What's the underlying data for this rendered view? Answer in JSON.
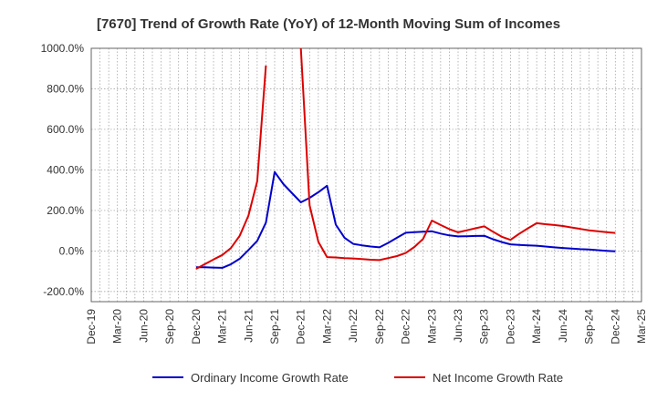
{
  "chart_data": {
    "type": "line",
    "title": "[7670]  Trend of Growth Rate (YoY) of 12-Month Moving Sum of Incomes",
    "xlabel": "",
    "ylabel": "",
    "ylim": [
      -250,
      1000
    ],
    "yticks": [
      1000,
      800,
      600,
      400,
      200,
      0,
      -200
    ],
    "ytick_labels": [
      "1000.0%",
      "800.0%",
      "600.0%",
      "400.0%",
      "200.0%",
      "0.0%",
      "-200.0%"
    ],
    "x_tick_labels": [
      "Dec-19",
      "Mar-20",
      "Jun-20",
      "Sep-20",
      "Dec-20",
      "Mar-21",
      "Jun-21",
      "Sep-21",
      "Dec-21",
      "Mar-22",
      "Jun-22",
      "Sep-22",
      "Dec-22",
      "Mar-23",
      "Jun-23",
      "Sep-23",
      "Dec-23",
      "Mar-24",
      "Jun-24",
      "Sep-24",
      "Dec-24",
      "Mar-25"
    ],
    "x_range_months": [
      "Dec-19",
      "Mar-25"
    ],
    "grid": true,
    "legend_position": "bottom",
    "series": [
      {
        "name": "Ordinary Income Growth Rate",
        "color": "#0000cc",
        "points": [
          [
            "Dec-20",
            -80
          ],
          [
            "Jan-21",
            -80
          ],
          [
            "Feb-21",
            -82
          ],
          [
            "Mar-21",
            -83
          ],
          [
            "Apr-21",
            -65
          ],
          [
            "May-21",
            -38
          ],
          [
            "Jun-21",
            5
          ],
          [
            "Jul-21",
            50
          ],
          [
            "Aug-21",
            140
          ],
          [
            "Sep-21",
            390
          ],
          [
            "Oct-21",
            330
          ],
          [
            "Nov-21",
            285
          ],
          [
            "Dec-21",
            240
          ],
          [
            "Jan-22",
            262
          ],
          [
            "Feb-22",
            290
          ],
          [
            "Mar-22",
            322
          ],
          [
            "Apr-22",
            130
          ],
          [
            "May-22",
            65
          ],
          [
            "Jun-22",
            35
          ],
          [
            "Jul-22",
            28
          ],
          [
            "Aug-22",
            22
          ],
          [
            "Sep-22",
            18
          ],
          [
            "Oct-22",
            40
          ],
          [
            "Nov-22",
            65
          ],
          [
            "Dec-22",
            90
          ],
          [
            "Jan-23",
            93
          ],
          [
            "Feb-23",
            95
          ],
          [
            "Mar-23",
            97
          ],
          [
            "Apr-23",
            86
          ],
          [
            "May-23",
            77
          ],
          [
            "Jun-23",
            72
          ],
          [
            "Jul-23",
            73
          ],
          [
            "Aug-23",
            74
          ],
          [
            "Sep-23",
            75
          ],
          [
            "Oct-23",
            58
          ],
          [
            "Nov-23",
            44
          ],
          [
            "Dec-23",
            33
          ],
          [
            "Jan-24",
            30
          ],
          [
            "Feb-24",
            28
          ],
          [
            "Mar-24",
            26
          ],
          [
            "Apr-24",
            22
          ],
          [
            "May-24",
            18
          ],
          [
            "Jun-24",
            15
          ],
          [
            "Jul-24",
            12
          ],
          [
            "Aug-24",
            9
          ],
          [
            "Sep-24",
            7
          ],
          [
            "Oct-24",
            4
          ],
          [
            "Nov-24",
            1
          ],
          [
            "Dec-24",
            -2
          ]
        ]
      },
      {
        "name": "Net Income Growth Rate",
        "color": "#dd0000",
        "points": [
          [
            "Dec-20",
            -88
          ],
          [
            "Jan-21",
            -65
          ],
          [
            "Feb-21",
            -42
          ],
          [
            "Mar-21",
            -20
          ],
          [
            "Apr-21",
            15
          ],
          [
            "May-21",
            75
          ],
          [
            "Jun-21",
            175
          ],
          [
            "Jul-21",
            345
          ],
          [
            "Aug-21",
            915
          ],
          null,
          [
            "Dec-21",
            1000
          ],
          [
            "Jan-22",
            225
          ],
          [
            "Feb-22",
            45
          ],
          [
            "Mar-22",
            -30
          ],
          [
            "Apr-22",
            -32
          ],
          [
            "May-22",
            -35
          ],
          [
            "Jun-22",
            -37
          ],
          [
            "Jul-22",
            -40
          ],
          [
            "Aug-22",
            -43
          ],
          [
            "Sep-22",
            -45
          ],
          [
            "Oct-22",
            -35
          ],
          [
            "Nov-22",
            -25
          ],
          [
            "Dec-22",
            -10
          ],
          [
            "Jan-23",
            20
          ],
          [
            "Feb-23",
            60
          ],
          [
            "Mar-23",
            150
          ],
          [
            "Apr-23",
            128
          ],
          [
            "May-23",
            108
          ],
          [
            "Jun-23",
            92
          ],
          [
            "Jul-23",
            102
          ],
          [
            "Aug-23",
            112
          ],
          [
            "Sep-23",
            122
          ],
          [
            "Oct-23",
            95
          ],
          [
            "Nov-23",
            70
          ],
          [
            "Dec-23",
            55
          ],
          [
            "Jan-24",
            85
          ],
          [
            "Feb-24",
            112
          ],
          [
            "Mar-24",
            137
          ],
          [
            "Apr-24",
            132
          ],
          [
            "May-24",
            128
          ],
          [
            "Jun-24",
            123
          ],
          [
            "Jul-24",
            116
          ],
          [
            "Aug-24",
            109
          ],
          [
            "Sep-24",
            102
          ],
          [
            "Oct-24",
            97
          ],
          [
            "Nov-24",
            93
          ],
          [
            "Dec-24",
            89
          ]
        ]
      }
    ]
  }
}
